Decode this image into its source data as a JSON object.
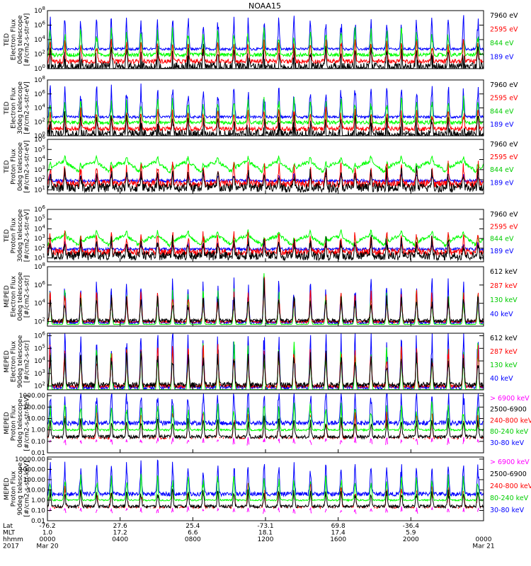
{
  "title": "NOAA15",
  "colors": {
    "black": "#000000",
    "red": "#ff0000",
    "green": "#00ff00",
    "blue": "#0000ff",
    "magenta": "#ff00ff"
  },
  "chart_data": [
    {
      "type": "line",
      "ylabel": [
        "TED",
        "Electron Flux",
        "0deg telescope",
        "[#/cm2-s-str-eV]"
      ],
      "yscale": "log",
      "ticks": [
        "10^0",
        "10^2",
        "10^4",
        "10^6",
        "10^8"
      ],
      "tick_values": [
        0,
        2,
        4,
        6,
        8
      ],
      "ylim": [
        0,
        8
      ],
      "legend": [
        {
          "label": "7960 eV",
          "color": "#000000"
        },
        {
          "label": "2595 eV",
          "color": "#ff0000"
        },
        {
          "label": "844 eV",
          "color": "#00ff00"
        },
        {
          "label": "189 eV",
          "color": "#0000ff"
        }
      ],
      "style": "ted_e",
      "approx_levels": [
        {
          "name": "189 eV",
          "log10_median": 2.7
        },
        {
          "name": "844 eV",
          "log10_median": 2.0
        },
        {
          "name": "2595 eV",
          "log10_median": 1.3
        },
        {
          "name": "7960 eV",
          "log10_median": 0.6
        }
      ]
    },
    {
      "type": "line",
      "ylabel": [
        "TED",
        "Electron Flux",
        "30deg telescope",
        "[#/cm2-s-str-eV]"
      ],
      "yscale": "log",
      "ticks": [
        "10^0",
        "10^2",
        "10^4",
        "10^6",
        "10^8"
      ],
      "tick_values": [
        0,
        2,
        4,
        6,
        8
      ],
      "ylim": [
        0,
        8
      ],
      "legend": [
        {
          "label": "7960 eV",
          "color": "#000000"
        },
        {
          "label": "2595 eV",
          "color": "#ff0000"
        },
        {
          "label": "844 eV",
          "color": "#00ff00"
        },
        {
          "label": "189 eV",
          "color": "#0000ff"
        }
      ],
      "style": "ted_e"
    },
    {
      "type": "line",
      "ylabel": [
        "TED",
        "Proton Flux",
        "0deg telescope",
        "[#/cm2-s-str-eV]"
      ],
      "yscale": "log",
      "ticks": [
        "10^1",
        "10^2",
        "10^3",
        "10^4",
        "10^5",
        "10^6"
      ],
      "tick_values": [
        1,
        2,
        3,
        4,
        5,
        6
      ],
      "ylim": [
        0.6,
        6
      ],
      "legend": [
        {
          "label": "7960 eV",
          "color": "#000000"
        },
        {
          "label": "2595 eV",
          "color": "#ff0000"
        },
        {
          "label": "844 eV",
          "color": "#00ff00"
        },
        {
          "label": "189 eV",
          "color": "#0000ff"
        }
      ],
      "style": "ted_p"
    },
    {
      "type": "line",
      "ylabel": [
        "TED",
        "Proton Flux",
        "30deg telescope",
        "[#/cm2-s-str-eV]"
      ],
      "yscale": "log",
      "ticks": [
        "10^1",
        "10^2",
        "10^3",
        "10^4",
        "10^5",
        "10^6"
      ],
      "tick_values": [
        1,
        2,
        3,
        4,
        5,
        6
      ],
      "ylim": [
        0.6,
        6
      ],
      "legend": [
        {
          "label": "7960 eV",
          "color": "#000000"
        },
        {
          "label": "2595 eV",
          "color": "#ff0000"
        },
        {
          "label": "844 eV",
          "color": "#00ff00"
        },
        {
          "label": "189 eV",
          "color": "#0000ff"
        }
      ],
      "style": "ted_p2"
    },
    {
      "type": "line",
      "ylabel": [
        "MEPED",
        "Electron Flux",
        "0deg telescope",
        "[#/cm2-s-str]"
      ],
      "yscale": "log",
      "ticks": [
        "10^2",
        "10^4",
        "10^6",
        "10^8"
      ],
      "tick_values": [
        2,
        4,
        6,
        8
      ],
      "ylim": [
        1.5,
        8
      ],
      "legend": [
        {
          "label": "612 keV",
          "color": "#000000"
        },
        {
          "label": "287 keV",
          "color": "#ff0000"
        },
        {
          "label": "130 keV",
          "color": "#00ff00"
        },
        {
          "label": "40 keV",
          "color": "#0000ff"
        }
      ],
      "style": "mep_e"
    },
    {
      "type": "line",
      "ylabel": [
        "MEPED",
        "Electron Flux",
        "90deg telescope",
        "[#/cm2-s-str]"
      ],
      "yscale": "log",
      "ticks": [
        "10^2",
        "10^3",
        "10^4",
        "10^5",
        "10^6"
      ],
      "tick_values": [
        2,
        3,
        4,
        5,
        6
      ],
      "ylim": [
        1.7,
        6.2
      ],
      "legend": [
        {
          "label": "612 keV",
          "color": "#000000"
        },
        {
          "label": "287 keV",
          "color": "#ff0000"
        },
        {
          "label": "130 keV",
          "color": "#00ff00"
        },
        {
          "label": "40 keV",
          "color": "#0000ff"
        }
      ],
      "style": "mep_e2"
    },
    {
      "type": "line",
      "ylabel": [
        "MEPED",
        "Proton Flux",
        "0deg telescope",
        "[#/cm2-s-str-keV]"
      ],
      "yscale": "log",
      "ticks": [
        "0.01",
        "0.10",
        "1.00",
        "10.00",
        "100.00",
        "1000.00"
      ],
      "tick_values": [
        -2,
        -1,
        0,
        1,
        2,
        3
      ],
      "ylim": [
        -2,
        3.2
      ],
      "legend": [
        {
          "label": "> 6900 keV",
          "color": "#ff00ff"
        },
        {
          "label": "2500-6900",
          "color": "#000000"
        },
        {
          "label": "240-800 keV",
          "color": "#ff0000"
        },
        {
          "label": "80-240 keV",
          "color": "#00ff00"
        },
        {
          "label": "30-80 keV",
          "color": "#0000ff"
        }
      ],
      "style": "mep_p"
    },
    {
      "type": "line",
      "ylabel": [
        "MEPED",
        "Proton Flux",
        "90deg telescope",
        "[#/cm2-s-str-keV]"
      ],
      "yscale": "log",
      "ticks": [
        "0.01",
        "0.10",
        "1.00",
        "10.00",
        "100.00",
        "1000.00",
        "10000.00"
      ],
      "tick_values": [
        -2,
        -1,
        0,
        1,
        2,
        3,
        4
      ],
      "ylim": [
        -2,
        4.2
      ],
      "legend": [
        {
          "label": "> 6900 keV",
          "color": "#ff00ff"
        },
        {
          "label": "2500-6900",
          "color": "#000000"
        },
        {
          "label": "240-800 keV",
          "color": "#ff0000"
        },
        {
          "label": "80-240 keV",
          "color": "#00ff00"
        },
        {
          "label": "30-80 keV",
          "color": "#0000ff"
        }
      ],
      "style": "mep_p2"
    }
  ],
  "x_axis": {
    "row_labels": [
      "Lat",
      "MLT",
      "hhmm",
      "2017"
    ],
    "columns": [
      {
        "t": 0,
        "lat": "-76.2",
        "mlt": "1.0",
        "hhmm": "0000",
        "date": "Mar 20"
      },
      {
        "t": 240,
        "lat": "27.6",
        "mlt": "17.2",
        "hhmm": "0400",
        "date": ""
      },
      {
        "t": 480,
        "lat": "25.4",
        "mlt": "6.6",
        "hhmm": "0800",
        "date": ""
      },
      {
        "t": 720,
        "lat": "-73.1",
        "mlt": "18.1",
        "hhmm": "1200",
        "date": ""
      },
      {
        "t": 960,
        "lat": "69.8",
        "mlt": "17.4",
        "hhmm": "1600",
        "date": ""
      },
      {
        "t": 1200,
        "lat": "-36.4",
        "mlt": "5.9",
        "hhmm": "2000",
        "date": ""
      },
      {
        "t": 1440,
        "lat": "",
        "mlt": "",
        "hhmm": "0000",
        "date": "Mar 21"
      }
    ],
    "xlim_minutes": [
      0,
      1440
    ]
  }
}
